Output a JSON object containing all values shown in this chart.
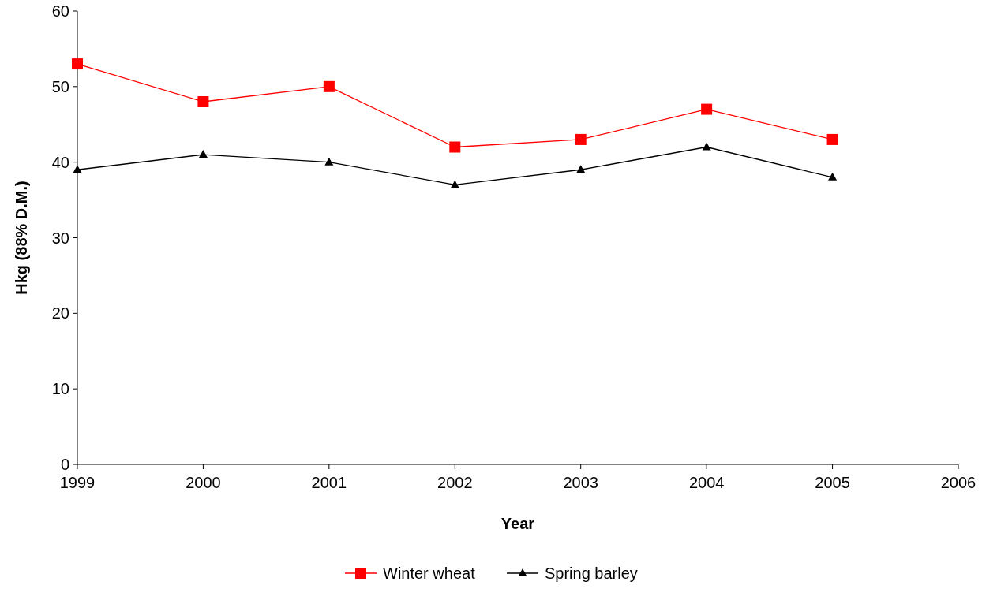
{
  "chart_data": {
    "type": "line",
    "xlabel": "Year",
    "ylabel": "Hkg (88% D.M.)",
    "x": [
      1999,
      2000,
      2001,
      2002,
      2003,
      2004,
      2005
    ],
    "series": [
      {
        "name": "Winter wheat",
        "color": "#ff0000",
        "marker": "square",
        "values": [
          53,
          48,
          50,
          42,
          43,
          47,
          43
        ]
      },
      {
        "name": "Spring barley",
        "color": "#000000",
        "marker": "triangle",
        "values": [
          39,
          41,
          40,
          37,
          39,
          42,
          38
        ]
      }
    ],
    "xlim": [
      1999,
      2006
    ],
    "xticks": [
      1999,
      2000,
      2001,
      2002,
      2003,
      2004,
      2005,
      2006
    ],
    "ylim": [
      0,
      60
    ],
    "yticks": [
      0,
      10,
      20,
      30,
      40,
      50,
      60
    ],
    "grid": false,
    "legend": "bottom",
    "line_style": "solid"
  }
}
